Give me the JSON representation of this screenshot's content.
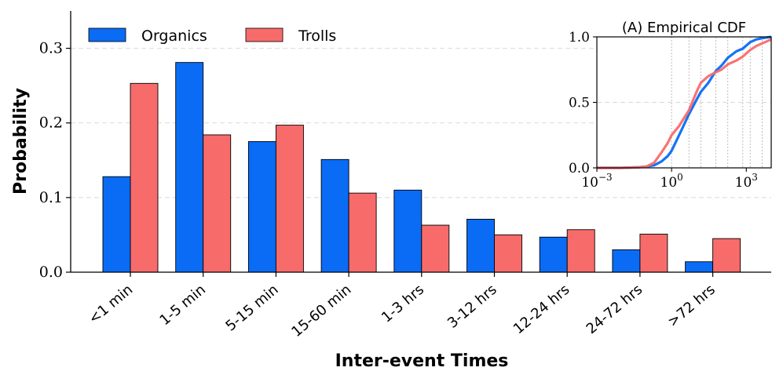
{
  "colors": {
    "organics": "#0a6cf5",
    "trolls": "#f86b6b",
    "grid": "#d9d9d9",
    "axis": "#000000"
  },
  "chart_data": [
    {
      "type": "bar",
      "title": "",
      "xlabel": "Inter-event Times",
      "ylabel": "Probability",
      "categories": [
        "<1 min",
        "1-5 min",
        "5-15 min",
        "15-60 min",
        "1-3 hrs",
        "3-12 hrs",
        "12-24 hrs",
        "24-72 hrs",
        ">72 hrs"
      ],
      "series": [
        {
          "name": "Organics",
          "color": "#0a6cf5",
          "values": [
            0.128,
            0.281,
            0.175,
            0.151,
            0.11,
            0.071,
            0.047,
            0.03,
            0.014
          ]
        },
        {
          "name": "Trolls",
          "color": "#f86b6b",
          "values": [
            0.253,
            0.184,
            0.197,
            0.106,
            0.063,
            0.05,
            0.057,
            0.051,
            0.045
          ]
        }
      ],
      "ylim": [
        0,
        0.35
      ],
      "yticks": [
        0.0,
        0.1,
        0.2,
        0.3
      ],
      "ytick_labels": [
        "0.0",
        "0.1",
        "0.2",
        "0.3"
      ],
      "grid": "horizontal dashed",
      "legend": "top-left"
    },
    {
      "type": "line",
      "title": "(A) Empirical CDF",
      "xscale": "log",
      "xlim": [
        0.001,
        10000
      ],
      "ylim": [
        0,
        1
      ],
      "xtick_labels": [
        "10^-3",
        "10^0",
        "10^3"
      ],
      "xticks": [
        0.001,
        1,
        1000
      ],
      "yticks": [
        0.0,
        0.5,
        1.0
      ],
      "ytick_labels": [
        "0.0",
        "0.5",
        "1.0"
      ],
      "vlines": [
        1,
        5,
        15,
        60,
        180,
        720,
        1440,
        4320
      ],
      "series": [
        {
          "name": "Organics",
          "color": "#0a6cf5",
          "x": [
            0.001,
            0.01,
            0.05,
            0.1,
            0.2,
            0.4,
            0.7,
            1,
            2,
            5,
            10,
            15,
            30,
            60,
            100,
            180,
            400,
            720,
            1440,
            2500,
            4320,
            10000
          ],
          "y": [
            0.0,
            0.0,
            0.005,
            0.01,
            0.02,
            0.05,
            0.09,
            0.13,
            0.25,
            0.41,
            0.52,
            0.58,
            0.65,
            0.74,
            0.78,
            0.84,
            0.89,
            0.91,
            0.96,
            0.98,
            0.99,
            1.0
          ]
        },
        {
          "name": "Trolls",
          "color": "#f86b6b",
          "x": [
            0.001,
            0.01,
            0.05,
            0.1,
            0.2,
            0.4,
            0.7,
            1,
            2,
            5,
            10,
            15,
            30,
            60,
            100,
            180,
            400,
            720,
            1440,
            2500,
            4320,
            10000
          ],
          "y": [
            0.0,
            0.0,
            0.005,
            0.01,
            0.04,
            0.12,
            0.19,
            0.25,
            0.32,
            0.44,
            0.58,
            0.65,
            0.7,
            0.73,
            0.75,
            0.79,
            0.82,
            0.85,
            0.9,
            0.93,
            0.95,
            0.98
          ]
        }
      ]
    }
  ]
}
